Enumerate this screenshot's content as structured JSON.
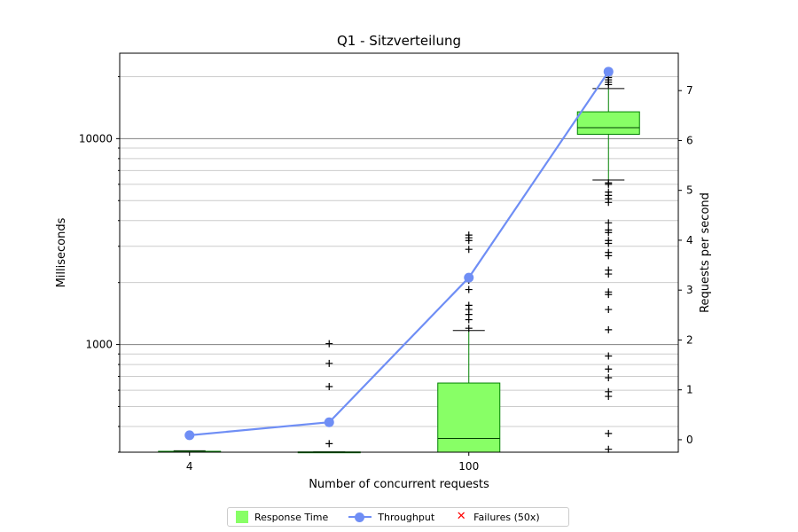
{
  "chart_data": {
    "type": "box",
    "title": "Q1 - Sitzverteilung",
    "xlabel": "Number of concurrent requests",
    "ylabel": "Milliseconds",
    "y2label": "Requests per second",
    "categories": [
      "4",
      "",
      "100",
      ""
    ],
    "y_scale": "log",
    "ylim": [
      300,
      26000
    ],
    "y_major_ticks": [
      1000,
      10000
    ],
    "y_major_tick_labels": [
      "1000",
      "10000"
    ],
    "y2lim": [
      -0.25,
      7.75
    ],
    "y2_ticks": [
      0,
      1,
      2,
      3,
      4,
      5,
      6,
      7
    ],
    "y2_tick_labels": [
      "0",
      "1",
      "2",
      "3",
      "4",
      "5",
      "6",
      "7"
    ],
    "grid": "horizontal",
    "legend_position": "bottom-center",
    "colors": {
      "box_fill": "#88ff66",
      "box_edge": "#008000",
      "median": "#004000",
      "throughput": "#6f8ef5",
      "failures": "#ff0000",
      "grid_major": "#808080",
      "grid_minor": "#cccccc"
    },
    "series": [
      {
        "name": "Response Time",
        "boxes": [
          {
            "category": "4",
            "whisker_low": 300,
            "q1": 300,
            "median": 300,
            "q3": 303,
            "whisker_high": 305,
            "outliers": []
          },
          {
            "category": "",
            "whisker_low": 300,
            "q1": 300,
            "median": 300,
            "q3": 301,
            "whisker_high": 301,
            "outliers": [
              330,
              625,
              810,
              1010
            ]
          },
          {
            "category": "100",
            "whisker_low": 300,
            "q1": 300,
            "median": 350,
            "q3": 650,
            "whisker_high": 1170,
            "outliers": [
              1200,
              1320,
              1400,
              1480,
              1550,
              1850,
              2050,
              2900,
              3200,
              3300,
              3400
            ]
          },
          {
            "category": "",
            "whisker_low": 6300,
            "q1": 10500,
            "median": 11300,
            "q3": 13500,
            "whisker_high": 17500,
            "outliers": [
              310,
              370,
              560,
              590,
              690,
              760,
              880,
              1180,
              1480,
              1750,
              1800,
              2200,
              2300,
              2700,
              2800,
              3100,
              3200,
              3500,
              3600,
              3900,
              4900,
              5100,
              5300,
              5500,
              6000,
              6100,
              18300,
              18800,
              19300,
              19800,
              20300,
              20800
            ]
          }
        ]
      },
      {
        "name": "Throughput",
        "axis": "right",
        "values": [
          0.09,
          0.35,
          3.25,
          7.38
        ]
      },
      {
        "name": "Failures (50x)",
        "values": []
      }
    ]
  },
  "legend": {
    "response_time": "Response Time",
    "throughput": "Throughput",
    "failures": "Failures (50x)"
  }
}
